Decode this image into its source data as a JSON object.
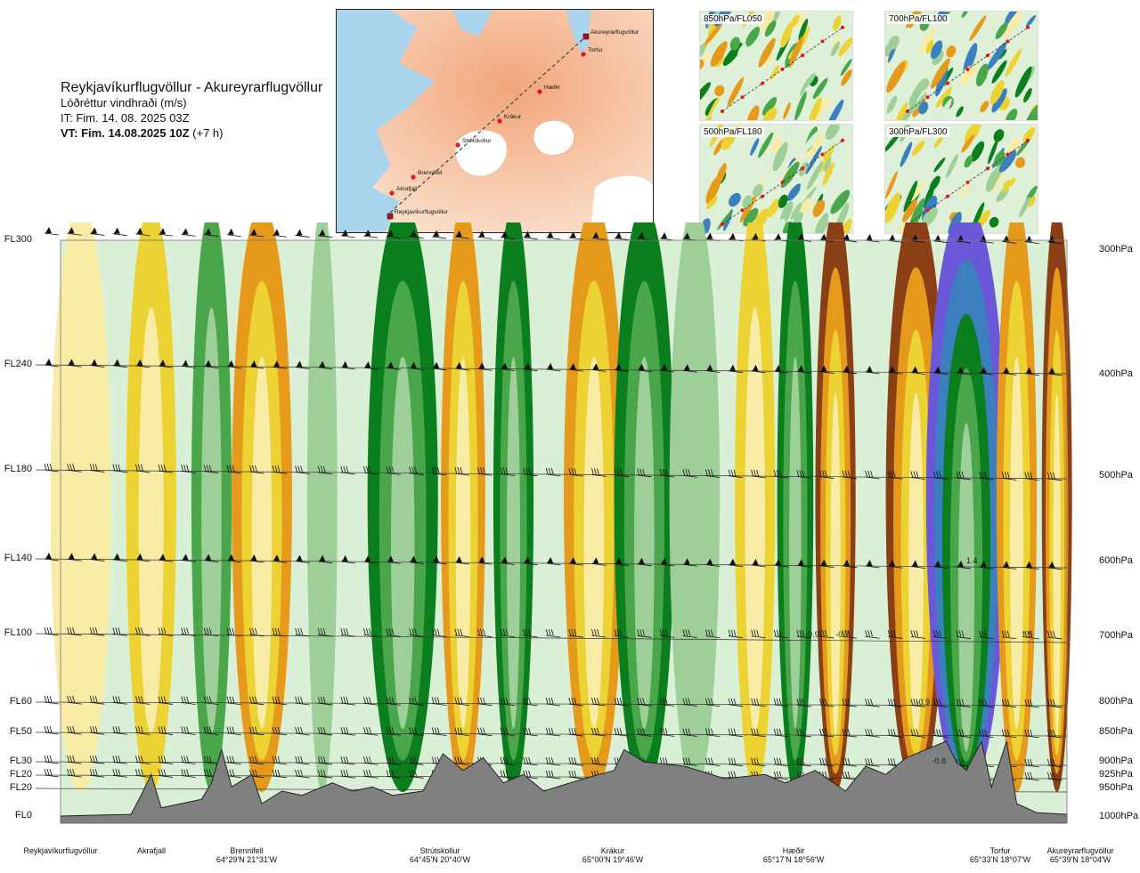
{
  "header": {
    "route": "Reykjavíkurflugvöllur - Akureyrarflugvöllur",
    "variable": "Lóðréttur vindhraði (m/s)",
    "it": "IT: Fim. 14. 08. 2025 03Z",
    "vt": "VT: Fim. 14.08.2025 10Z",
    "vt_offset": "(+7 h)"
  },
  "map": {
    "route_points": [
      "Reykjavíkurflugvöllur",
      "Akrafjall",
      "Brennifell",
      "Strútskollur",
      "Krákur",
      "Hæðir",
      "Torfur",
      "Akureyrarflugvöllur"
    ]
  },
  "insets": [
    {
      "label": "850hPa/FL050"
    },
    {
      "label": "700hPa/FL100"
    },
    {
      "label": "500hPa/FL180"
    },
    {
      "label": "300hPa/FL300"
    }
  ],
  "colors": {
    "strong_down": "#8a3f14",
    "down": "#e59a1c",
    "weak_down": "#ecd232",
    "faint_down": "#f7eba6",
    "neutral": "#d9efd6",
    "weak_up": "#9fcf98",
    "up": "#4aa64a",
    "strong_up": "#0b7f1d",
    "stronger_up": "#3b7fbf",
    "strongest_up": "#6a58d8",
    "terrain": "#808080"
  },
  "chart_data": {
    "type": "heatmap",
    "title": "Lóðréttur vindhraði (m/s)",
    "x_axis": {
      "points": [
        {
          "name": "Reykjavíkurflugvöllur",
          "coord": ""
        },
        {
          "name": "Akrafjall",
          "coord": ""
        },
        {
          "name": "Brennifell",
          "coord": "64°29'N 21°31'W"
        },
        {
          "name": "Strútskollur",
          "coord": "64°45'N 20°40'W"
        },
        {
          "name": "Krákur",
          "coord": "65°00'N 19°46'W"
        },
        {
          "name": "Hæðir",
          "coord": "65°17'N 18°56'W"
        },
        {
          "name": "Torfur",
          "coord": "65°33'N 18°07'W"
        },
        {
          "name": "Akureyrarflugvöllur",
          "coord": "65°39'N 18°04'W"
        }
      ]
    },
    "flight_levels": [
      "FL300",
      "FL240",
      "FL180",
      "FL140",
      "FL100",
      "FL60",
      "FL50",
      "FL30",
      "FL20",
      "FL20",
      "FL0"
    ],
    "pressure_levels": [
      "300hPa",
      "400hPa",
      "500hPa",
      "600hPa",
      "700hPa",
      "800hPa",
      "850hPa",
      "900hPa",
      "925hPa",
      "950hPa",
      "1000hPa"
    ],
    "contour_labels": [
      "-0.9",
      "-0.7",
      "1.5",
      "1.4",
      "-0.9",
      "-0.8"
    ],
    "vertical_velocity_bands": [
      {
        "pos": 0.02,
        "value": -0.1,
        "width": 0.03
      },
      {
        "pos": 0.09,
        "value": -0.2,
        "width": 0.025
      },
      {
        "pos": 0.15,
        "value": 0.3,
        "width": 0.02
      },
      {
        "pos": 0.2,
        "value": -0.4,
        "width": 0.03
      },
      {
        "pos": 0.26,
        "value": 0.2,
        "width": 0.015
      },
      {
        "pos": 0.34,
        "value": 0.7,
        "width": 0.035
      },
      {
        "pos": 0.4,
        "value": -0.6,
        "width": 0.022
      },
      {
        "pos": 0.45,
        "value": 0.6,
        "width": 0.02
      },
      {
        "pos": 0.53,
        "value": -0.4,
        "width": 0.03
      },
      {
        "pos": 0.58,
        "value": 0.6,
        "width": 0.03
      },
      {
        "pos": 0.63,
        "value": 0.2,
        "width": 0.025
      },
      {
        "pos": 0.69,
        "value": -0.3,
        "width": 0.02
      },
      {
        "pos": 0.73,
        "value": 0.6,
        "width": 0.018
      },
      {
        "pos": 0.77,
        "value": -0.9,
        "width": 0.02
      },
      {
        "pos": 0.85,
        "value": -0.9,
        "width": 0.03
      },
      {
        "pos": 0.9,
        "value": 1.5,
        "width": 0.04
      },
      {
        "pos": 0.95,
        "value": -0.4,
        "width": 0.02
      },
      {
        "pos": 0.99,
        "value": -0.8,
        "width": 0.015
      }
    ],
    "terrain_profile": [
      [
        0.0,
        0
      ],
      [
        0.07,
        20
      ],
      [
        0.08,
        250
      ],
      [
        0.09,
        500
      ],
      [
        0.1,
        100
      ],
      [
        0.12,
        150
      ],
      [
        0.14,
        200
      ],
      [
        0.15,
        400
      ],
      [
        0.16,
        800
      ],
      [
        0.17,
        350
      ],
      [
        0.19,
        500
      ],
      [
        0.2,
        150
      ],
      [
        0.22,
        300
      ],
      [
        0.24,
        250
      ],
      [
        0.27,
        400
      ],
      [
        0.29,
        300
      ],
      [
        0.31,
        350
      ],
      [
        0.33,
        250
      ],
      [
        0.36,
        300
      ],
      [
        0.38,
        750
      ],
      [
        0.4,
        550
      ],
      [
        0.42,
        700
      ],
      [
        0.44,
        400
      ],
      [
        0.46,
        500
      ],
      [
        0.48,
        300
      ],
      [
        0.52,
        450
      ],
      [
        0.55,
        550
      ],
      [
        0.56,
        800
      ],
      [
        0.58,
        650
      ],
      [
        0.62,
        600
      ],
      [
        0.66,
        450
      ],
      [
        0.7,
        500
      ],
      [
        0.72,
        400
      ],
      [
        0.75,
        550
      ],
      [
        0.78,
        300
      ],
      [
        0.8,
        600
      ],
      [
        0.82,
        500
      ],
      [
        0.84,
        700
      ],
      [
        0.86,
        800
      ],
      [
        0.88,
        900
      ],
      [
        0.89,
        650
      ],
      [
        0.9,
        550
      ],
      [
        0.915,
        900
      ],
      [
        0.925,
        350
      ],
      [
        0.94,
        900
      ],
      [
        0.95,
        150
      ],
      [
        0.97,
        40
      ],
      [
        1.0,
        20
      ]
    ],
    "terrain_range": [
      0,
      1500
    ]
  }
}
